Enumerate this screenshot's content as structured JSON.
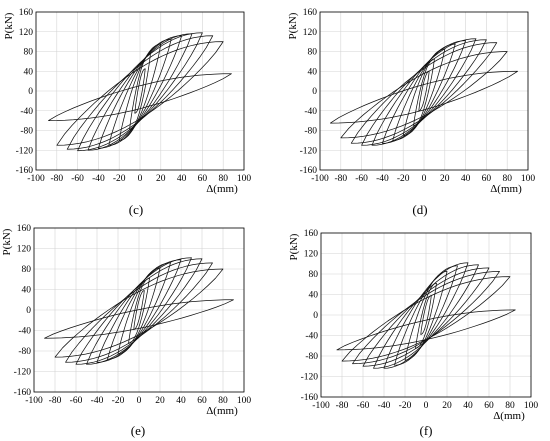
{
  "chart_data": [
    {
      "type": "line",
      "panel_label": "(c)",
      "xlabel": "Δ(mm)",
      "ylabel": "P(kN)",
      "xlim": [
        -100,
        100
      ],
      "ylim": [
        -160,
        160
      ],
      "xticks": [
        "-100",
        "-80",
        "-60",
        "-40",
        "-20",
        "0",
        "20",
        "40",
        "60",
        "80",
        "100"
      ],
      "yticks": [
        "-160",
        "-120",
        "-80",
        "-40",
        "0",
        "40",
        "80",
        "120",
        "160"
      ],
      "grid": true,
      "cycles": [
        {
          "dmax": 5,
          "ppos": 45,
          "dmin": -5,
          "pneg": -45
        },
        {
          "dmax": 10,
          "ppos": 75,
          "dmin": -10,
          "pneg": -78
        },
        {
          "dmax": 20,
          "ppos": 95,
          "dmin": -20,
          "pneg": -100
        },
        {
          "dmax": 30,
          "ppos": 105,
          "dmin": -30,
          "pneg": -110
        },
        {
          "dmax": 40,
          "ppos": 112,
          "dmin": -40,
          "pneg": -116
        },
        {
          "dmax": 50,
          "ppos": 116,
          "dmin": -50,
          "pneg": -120
        },
        {
          "dmax": 60,
          "ppos": 118,
          "dmin": -60,
          "pneg": -121
        },
        {
          "dmax": 70,
          "ppos": 112,
          "dmin": -70,
          "pneg": -118
        },
        {
          "dmax": 80,
          "ppos": 100,
          "dmin": -80,
          "pneg": -110
        },
        {
          "dmax": 88,
          "ppos": 35,
          "dmin": -88,
          "pneg": -60
        }
      ]
    },
    {
      "type": "line",
      "panel_label": "(d)",
      "xlabel": "Δ(mm)",
      "ylabel": "P(kN)",
      "xlim": [
        -100,
        100
      ],
      "ylim": [
        -160,
        160
      ],
      "xticks": [
        "-100",
        "-80",
        "-60",
        "-40",
        "-20",
        "0",
        "20",
        "40",
        "60",
        "80",
        "100"
      ],
      "yticks": [
        "-160",
        "-120",
        "-80",
        "-40",
        "0",
        "40",
        "80",
        "120",
        "160"
      ],
      "grid": true,
      "cycles": [
        {
          "dmax": 5,
          "ppos": 40,
          "dmin": -5,
          "pneg": -40
        },
        {
          "dmax": 10,
          "ppos": 65,
          "dmin": -10,
          "pneg": -70
        },
        {
          "dmax": 20,
          "ppos": 85,
          "dmin": -20,
          "pneg": -90
        },
        {
          "dmax": 30,
          "ppos": 95,
          "dmin": -30,
          "pneg": -100
        },
        {
          "dmax": 40,
          "ppos": 102,
          "dmin": -40,
          "pneg": -106
        },
        {
          "dmax": 50,
          "ppos": 106,
          "dmin": -50,
          "pneg": -110
        },
        {
          "dmax": 60,
          "ppos": 104,
          "dmin": -60,
          "pneg": -110
        },
        {
          "dmax": 70,
          "ppos": 98,
          "dmin": -70,
          "pneg": -106
        },
        {
          "dmax": 80,
          "ppos": 80,
          "dmin": -80,
          "pneg": -95
        },
        {
          "dmax": 90,
          "ppos": 40,
          "dmin": -90,
          "pneg": -65
        }
      ]
    },
    {
      "type": "line",
      "panel_label": "(e)",
      "xlabel": "Δ(mm)",
      "ylabel": "P(kN)",
      "xlim": [
        -100,
        100
      ],
      "ylim": [
        -160,
        160
      ],
      "xticks": [
        "-100",
        "-80",
        "-60",
        "-40",
        "-20",
        "0",
        "20",
        "40",
        "60",
        "80",
        "100"
      ],
      "yticks": [
        "-160",
        "-120",
        "-80",
        "-40",
        "0",
        "40",
        "80",
        "120",
        "160"
      ],
      "grid": true,
      "cycles": [
        {
          "dmax": 5,
          "ppos": 38,
          "dmin": -5,
          "pneg": -38
        },
        {
          "dmax": 10,
          "ppos": 62,
          "dmin": -10,
          "pneg": -65
        },
        {
          "dmax": 20,
          "ppos": 82,
          "dmin": -20,
          "pneg": -86
        },
        {
          "dmax": 30,
          "ppos": 92,
          "dmin": -30,
          "pneg": -96
        },
        {
          "dmax": 40,
          "ppos": 98,
          "dmin": -40,
          "pneg": -102
        },
        {
          "dmax": 50,
          "ppos": 102,
          "dmin": -50,
          "pneg": -106
        },
        {
          "dmax": 60,
          "ppos": 100,
          "dmin": -60,
          "pneg": -106
        },
        {
          "dmax": 70,
          "ppos": 92,
          "dmin": -70,
          "pneg": -102
        },
        {
          "dmax": 80,
          "ppos": 80,
          "dmin": -80,
          "pneg": -92
        },
        {
          "dmax": 90,
          "ppos": 20,
          "dmin": -90,
          "pneg": -55
        }
      ]
    },
    {
      "type": "line",
      "panel_label": "(f)",
      "xlabel": "Δ(mm)",
      "ylabel": "P(kN)",
      "xlim": [
        -100,
        100
      ],
      "ylim": [
        -160,
        160
      ],
      "xticks": [
        "-100",
        "-80",
        "-60",
        "-40",
        "-20",
        "0",
        "20",
        "40",
        "60",
        "80",
        "100"
      ],
      "yticks": [
        "-160",
        "-120",
        "-80",
        "-40",
        "0",
        "40",
        "80",
        "120",
        "160"
      ],
      "grid": true,
      "cycles": [
        {
          "dmax": 5,
          "ppos": 38,
          "dmin": -5,
          "pneg": -38
        },
        {
          "dmax": 10,
          "ppos": 62,
          "dmin": -10,
          "pneg": -65
        },
        {
          "dmax": 20,
          "ppos": 85,
          "dmin": -20,
          "pneg": -88
        },
        {
          "dmax": 30,
          "ppos": 96,
          "dmin": -30,
          "pneg": -98
        },
        {
          "dmax": 40,
          "ppos": 102,
          "dmin": -40,
          "pneg": -104
        },
        {
          "dmax": 50,
          "ppos": 98,
          "dmin": -50,
          "pneg": -104
        },
        {
          "dmax": 60,
          "ppos": 92,
          "dmin": -60,
          "pneg": -100
        },
        {
          "dmax": 70,
          "ppos": 85,
          "dmin": -70,
          "pneg": -95
        },
        {
          "dmax": 80,
          "ppos": 75,
          "dmin": -80,
          "pneg": -90
        },
        {
          "dmax": 85,
          "ppos": 10,
          "dmin": -85,
          "pneg": -68
        }
      ]
    }
  ]
}
